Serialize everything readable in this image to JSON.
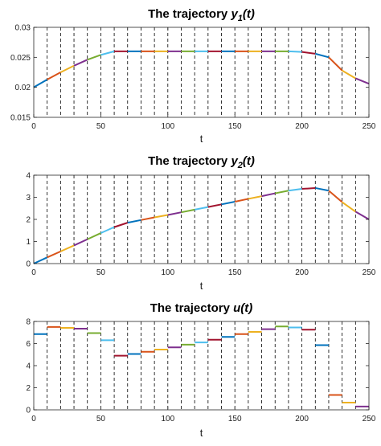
{
  "chart_data": [
    {
      "type": "line",
      "title_prefix": "The trajectory",
      "title_var": "y",
      "title_sub": "1",
      "title_arg": "(t)",
      "xlabel": "t",
      "ylabel": "",
      "xlim": [
        0,
        250
      ],
      "ylim": [
        0.015,
        0.03
      ],
      "xticks": [
        0,
        50,
        100,
        150,
        200,
        250
      ],
      "yticks": [
        0.015,
        0.02,
        0.025,
        0.03
      ],
      "ytick_labels": [
        "0.015",
        "0.02",
        "0.025",
        "0.03"
      ],
      "stage_boundaries": [
        10,
        20,
        30,
        40,
        50,
        60,
        70,
        80,
        90,
        100,
        110,
        120,
        130,
        140,
        150,
        160,
        170,
        180,
        190,
        200,
        210,
        220,
        230,
        240
      ],
      "stages": [
        [
          [
            0,
            0.02
          ],
          [
            10,
            0.0213
          ]
        ],
        [
          [
            10,
            0.0213
          ],
          [
            20,
            0.0225
          ]
        ],
        [
          [
            20,
            0.0225
          ],
          [
            30,
            0.0236
          ]
        ],
        [
          [
            30,
            0.0236
          ],
          [
            40,
            0.0246
          ]
        ],
        [
          [
            40,
            0.0246
          ],
          [
            50,
            0.0254
          ]
        ],
        [
          [
            50,
            0.0254
          ],
          [
            60,
            0.026
          ]
        ],
        [
          [
            60,
            0.026
          ],
          [
            70,
            0.026
          ]
        ],
        [
          [
            70,
            0.026
          ],
          [
            80,
            0.026
          ]
        ],
        [
          [
            80,
            0.026
          ],
          [
            90,
            0.026
          ]
        ],
        [
          [
            90,
            0.026
          ],
          [
            100,
            0.026
          ]
        ],
        [
          [
            100,
            0.026
          ],
          [
            110,
            0.026
          ]
        ],
        [
          [
            110,
            0.026
          ],
          [
            120,
            0.026
          ]
        ],
        [
          [
            120,
            0.026
          ],
          [
            130,
            0.026
          ]
        ],
        [
          [
            130,
            0.026
          ],
          [
            140,
            0.026
          ]
        ],
        [
          [
            140,
            0.026
          ],
          [
            150,
            0.026
          ]
        ],
        [
          [
            150,
            0.026
          ],
          [
            160,
            0.026
          ]
        ],
        [
          [
            160,
            0.026
          ],
          [
            170,
            0.026
          ]
        ],
        [
          [
            170,
            0.026
          ],
          [
            180,
            0.026
          ]
        ],
        [
          [
            180,
            0.026
          ],
          [
            190,
            0.026
          ]
        ],
        [
          [
            190,
            0.026
          ],
          [
            200,
            0.0259
          ]
        ],
        [
          [
            200,
            0.0259
          ],
          [
            210,
            0.0256
          ]
        ],
        [
          [
            210,
            0.0256
          ],
          [
            220,
            0.025
          ]
        ],
        [
          [
            220,
            0.025
          ],
          [
            230,
            0.0228
          ]
        ],
        [
          [
            230,
            0.0228
          ],
          [
            240,
            0.0215
          ]
        ],
        [
          [
            240,
            0.0215
          ],
          [
            250,
            0.0206
          ]
        ]
      ]
    },
    {
      "type": "line",
      "title_prefix": "The trajectory",
      "title_var": "y",
      "title_sub": "2",
      "title_arg": "(t)",
      "xlabel": "t",
      "ylabel": "",
      "xlim": [
        0,
        250
      ],
      "ylim": [
        0,
        4
      ],
      "xticks": [
        0,
        50,
        100,
        150,
        200,
        250
      ],
      "yticks": [
        0,
        1,
        2,
        3,
        4
      ],
      "ytick_labels": [
        "0",
        "1",
        "2",
        "3",
        "4"
      ],
      "stage_boundaries": [
        10,
        20,
        30,
        40,
        50,
        60,
        70,
        80,
        90,
        100,
        110,
        120,
        130,
        140,
        150,
        160,
        170,
        180,
        190,
        200,
        210,
        220,
        230,
        240
      ],
      "stages": [
        [
          [
            0,
            0.0
          ],
          [
            10,
            0.28
          ]
        ],
        [
          [
            10,
            0.28
          ],
          [
            20,
            0.55
          ]
        ],
        [
          [
            20,
            0.55
          ],
          [
            30,
            0.82
          ]
        ],
        [
          [
            30,
            0.82
          ],
          [
            40,
            1.1
          ]
        ],
        [
          [
            40,
            1.1
          ],
          [
            50,
            1.38
          ]
        ],
        [
          [
            50,
            1.38
          ],
          [
            60,
            1.65
          ]
        ],
        [
          [
            60,
            1.65
          ],
          [
            70,
            1.85
          ]
        ],
        [
          [
            70,
            1.85
          ],
          [
            80,
            1.97
          ]
        ],
        [
          [
            80,
            1.97
          ],
          [
            90,
            2.09
          ]
        ],
        [
          [
            90,
            2.09
          ],
          [
            100,
            2.2
          ]
        ],
        [
          [
            100,
            2.2
          ],
          [
            110,
            2.32
          ]
        ],
        [
          [
            110,
            2.32
          ],
          [
            120,
            2.44
          ]
        ],
        [
          [
            120,
            2.44
          ],
          [
            130,
            2.56
          ]
        ],
        [
          [
            130,
            2.56
          ],
          [
            140,
            2.68
          ]
        ],
        [
          [
            140,
            2.68
          ],
          [
            150,
            2.8
          ]
        ],
        [
          [
            150,
            2.8
          ],
          [
            160,
            2.93
          ]
        ],
        [
          [
            160,
            2.93
          ],
          [
            170,
            3.05
          ]
        ],
        [
          [
            170,
            3.05
          ],
          [
            180,
            3.18
          ]
        ],
        [
          [
            180,
            3.18
          ],
          [
            190,
            3.3
          ]
        ],
        [
          [
            190,
            3.3
          ],
          [
            200,
            3.38
          ]
        ],
        [
          [
            200,
            3.38
          ],
          [
            210,
            3.42
          ]
        ],
        [
          [
            210,
            3.42
          ],
          [
            220,
            3.3
          ]
        ],
        [
          [
            220,
            3.3
          ],
          [
            230,
            2.78
          ]
        ],
        [
          [
            230,
            2.78
          ],
          [
            240,
            2.35
          ]
        ],
        [
          [
            240,
            2.35
          ],
          [
            250,
            2.0
          ]
        ]
      ]
    },
    {
      "type": "line",
      "title_prefix": "The trajectory",
      "title_var": "u(t)",
      "title_sub": "",
      "title_arg": "",
      "xlabel": "t",
      "ylabel": "",
      "xlim": [
        0,
        250
      ],
      "ylim": [
        0,
        8
      ],
      "xticks": [
        0,
        50,
        100,
        150,
        200,
        250
      ],
      "yticks": [
        0,
        2,
        4,
        6,
        8
      ],
      "ytick_labels": [
        "0",
        "2",
        "4",
        "6",
        "8"
      ],
      "stage_boundaries": [
        10,
        20,
        30,
        40,
        50,
        60,
        70,
        80,
        90,
        100,
        110,
        120,
        130,
        140,
        150,
        160,
        170,
        180,
        190,
        200,
        210,
        220,
        230,
        240
      ],
      "stages": [
        [
          [
            0,
            6.85
          ],
          [
            10,
            6.85
          ]
        ],
        [
          [
            10,
            7.5
          ],
          [
            20,
            7.5
          ]
        ],
        [
          [
            20,
            7.42
          ],
          [
            30,
            7.42
          ]
        ],
        [
          [
            30,
            7.35
          ],
          [
            40,
            7.35
          ]
        ],
        [
          [
            40,
            6.95
          ],
          [
            50,
            6.95
          ]
        ],
        [
          [
            50,
            6.3
          ],
          [
            60,
            6.3
          ]
        ],
        [
          [
            60,
            4.9
          ],
          [
            70,
            4.9
          ]
        ],
        [
          [
            70,
            5.05
          ],
          [
            80,
            5.05
          ]
        ],
        [
          [
            80,
            5.25
          ],
          [
            90,
            5.25
          ]
        ],
        [
          [
            90,
            5.45
          ],
          [
            100,
            5.45
          ]
        ],
        [
          [
            100,
            5.65
          ],
          [
            110,
            5.65
          ]
        ],
        [
          [
            110,
            5.9
          ],
          [
            120,
            5.9
          ]
        ],
        [
          [
            120,
            6.1
          ],
          [
            130,
            6.1
          ]
        ],
        [
          [
            130,
            6.35
          ],
          [
            140,
            6.35
          ]
        ],
        [
          [
            140,
            6.6
          ],
          [
            150,
            6.6
          ]
        ],
        [
          [
            150,
            6.85
          ],
          [
            160,
            6.85
          ]
        ],
        [
          [
            160,
            7.05
          ],
          [
            170,
            7.05
          ]
        ],
        [
          [
            170,
            7.3
          ],
          [
            180,
            7.3
          ]
        ],
        [
          [
            180,
            7.55
          ],
          [
            190,
            7.55
          ]
        ],
        [
          [
            190,
            7.45
          ],
          [
            200,
            7.45
          ]
        ],
        [
          [
            200,
            7.25
          ],
          [
            210,
            7.25
          ]
        ],
        [
          [
            210,
            5.85
          ],
          [
            220,
            5.85
          ]
        ],
        [
          [
            220,
            1.35
          ],
          [
            230,
            1.35
          ]
        ],
        [
          [
            230,
            0.65
          ],
          [
            240,
            0.65
          ]
        ],
        [
          [
            240,
            0.3
          ],
          [
            250,
            0.3
          ]
        ]
      ]
    }
  ],
  "colors": {
    "cycle": [
      "#0072BD",
      "#D95319",
      "#EDB120",
      "#7E2F8E",
      "#77AC30",
      "#4DBEEE",
      "#A2142F"
    ],
    "axis": "#262626",
    "stage_line": "#000000"
  }
}
